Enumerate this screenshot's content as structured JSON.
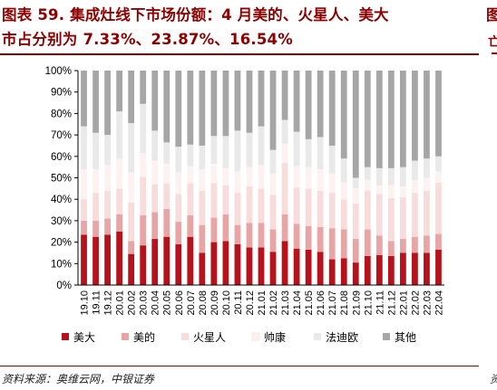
{
  "title": {
    "line1": "图表 59. 集成灶线下市场份额：4 月美的、火星人、美大",
    "line2": "市占分别为 7.33%、23.87%、16.54%"
  },
  "right_fragment": {
    "top": "图",
    "second": "亡",
    "bottom": "资"
  },
  "source": "资料来源：奥维云网，中银证券",
  "colors": {
    "title": "#8b0000",
    "rule": "#8b0000",
    "美大": "#b5121b",
    "美的": "#e8a5a5",
    "火星人": "#f8dcdc",
    "帅康": "#fdf2f2",
    "法迪欧": "#e9e9e9",
    "其他": "#a6a6a6"
  },
  "chart_data": {
    "type": "bar",
    "stacked": true,
    "percent": true,
    "ylim": [
      0,
      100
    ],
    "yticks": [
      "0%",
      "10%",
      "20%",
      "30%",
      "40%",
      "50%",
      "60%",
      "70%",
      "80%",
      "90%",
      "100%"
    ],
    "legend_position": "bottom",
    "categories": [
      "19.10",
      "19.11",
      "19.12",
      "20.01",
      "20.02",
      "20.03",
      "20.04",
      "20.05",
      "20.06",
      "20.07",
      "20.08",
      "20.09",
      "20.10",
      "20.11",
      "20.12",
      "21.01",
      "21.02",
      "21.03",
      "21.04",
      "21.05",
      "21.06",
      "21.07",
      "21.08",
      "21.09",
      "21.10",
      "21.11",
      "21.12",
      "22.01",
      "22.02",
      "22.03",
      "22.04"
    ],
    "series": [
      {
        "name": "美大",
        "color": "#b5121b",
        "values": [
          23.5,
          22.5,
          23.5,
          25,
          14.5,
          18.5,
          21.5,
          22.5,
          19,
          22.5,
          15,
          20,
          20.5,
          19,
          17.5,
          17.5,
          15.5,
          20.5,
          17,
          16.5,
          15.5,
          12,
          12.5,
          10.5,
          13.5,
          14,
          13.5,
          15,
          15,
          15,
          16.54
        ]
      },
      {
        "name": "美的",
        "color": "#e8a5a5",
        "values": [
          6.5,
          7.5,
          7.5,
          8,
          6,
          14,
          12.5,
          13,
          10.5,
          10,
          13,
          11.5,
          12.5,
          9,
          11.5,
          11.5,
          10.5,
          12.5,
          11.5,
          11,
          11.5,
          14.5,
          13.5,
          11,
          12.5,
          9,
          7,
          6.5,
          7.5,
          8,
          7.33
        ]
      },
      {
        "name": "火星人",
        "color": "#f8dcdc",
        "values": [
          10,
          13,
          13,
          12,
          18,
          18,
          13,
          12,
          13,
          15,
          16,
          16,
          13.5,
          15,
          17,
          16,
          16,
          24,
          17,
          17.5,
          17,
          16.5,
          14,
          16.5,
          18,
          19.5,
          20,
          19.5,
          20.5,
          21,
          23.87
        ]
      },
      {
        "name": "帅康",
        "color": "#fdf2f2",
        "values": [
          14,
          11,
          12,
          14,
          14,
          11,
          11,
          9,
          10,
          8,
          10,
          9,
          8,
          10,
          9,
          11,
          10,
          9,
          10,
          10,
          10,
          9,
          8,
          7,
          5,
          4,
          6,
          5,
          6,
          6,
          5.26
        ]
      },
      {
        "name": "法迪欧",
        "color": "#e9e9e9",
        "values": [
          20,
          17,
          14,
          22,
          23,
          23,
          14,
          10,
          12,
          10,
          11,
          13,
          15,
          19,
          16,
          18,
          11,
          11,
          16,
          13,
          15,
          13,
          11,
          5,
          6,
          8,
          8,
          9,
          9,
          9,
          7
        ]
      },
      {
        "name": "其他",
        "color": "#a6a6a6",
        "values": [
          26,
          29,
          30,
          19,
          24.5,
          15.5,
          28,
          33.5,
          35.5,
          34.5,
          35,
          30.5,
          30.5,
          28,
          29,
          26,
          37,
          23,
          28.5,
          32,
          31,
          35,
          41,
          50,
          45,
          45.5,
          45.5,
          45,
          42,
          41,
          40
        ]
      }
    ]
  }
}
